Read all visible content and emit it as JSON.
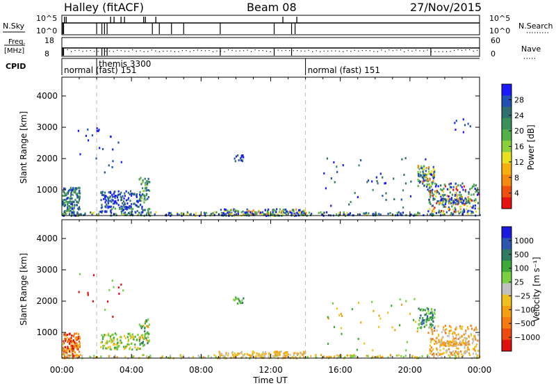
{
  "header": {
    "station": "Halley (fitACF)",
    "beam": "Beam 08",
    "date": "27/Nov/2015"
  },
  "side_labels": {
    "nsky": "N.Sky",
    "nsearch": "N.Search",
    "freq_line1": "Freq.",
    "freq_line2": "[MHz]",
    "nave": "Nave",
    "cpid": "CPID",
    "nsky_top": "10^5",
    "nsky_bottom": "10^0",
    "nsearch_top": "10^5",
    "nsearch_bottom": "10^0",
    "freq_top": "18",
    "freq_bottom": "8",
    "nave_top": "60",
    "nave_bottom": "0"
  },
  "cpid_segments": [
    {
      "start_hour": 0.0,
      "label": "normal (fast) 151"
    },
    {
      "start_hour": 2.0,
      "label": "themis 3300"
    },
    {
      "start_hour": 14.0,
      "label": "normal (fast) 151"
    }
  ],
  "chart_data": [
    {
      "type": "heatmap",
      "name": "power",
      "xlabel": "",
      "ylabel": "Slant Range [km]",
      "xlim": [
        0,
        24
      ],
      "ylim": [
        180,
        4600
      ],
      "yticks": [
        1000,
        2000,
        3000,
        4000
      ],
      "colorbar_label": "Power [dB]",
      "colorbar_ticks": [
        "4",
        "8",
        "12",
        "16",
        "20",
        "24",
        "28"
      ],
      "colorbar_colors": [
        "#1a1aff",
        "#2251b5",
        "#2f6f6f",
        "#3a8f5a",
        "#55b04a",
        "#8ad03a",
        "#e8e020",
        "#f5b010",
        "#f58a10",
        "#ee5010",
        "#e81010"
      ],
      "grid": false,
      "clusters": [
        {
          "t0": 0.0,
          "t1": 1.0,
          "r0": 200,
          "r1": 1100,
          "n": 160,
          "c": [
            0,
            1,
            2,
            3,
            4
          ]
        },
        {
          "t0": 0.0,
          "t1": 24.0,
          "r0": 200,
          "r1": 320,
          "n": 260,
          "c": [
            0,
            1,
            2,
            3,
            4,
            6
          ]
        },
        {
          "t0": 2.2,
          "t1": 4.5,
          "r0": 480,
          "r1": 1000,
          "n": 120,
          "c": [
            0,
            1,
            2
          ]
        },
        {
          "t0": 4.4,
          "t1": 5.0,
          "r0": 600,
          "r1": 1450,
          "n": 50,
          "c": [
            1,
            2,
            3,
            4,
            5
          ]
        },
        {
          "t0": 2.1,
          "t1": 5.0,
          "r0": 300,
          "r1": 500,
          "n": 60,
          "c": [
            0,
            1,
            2,
            4
          ]
        },
        {
          "t0": 9.0,
          "t1": 14.0,
          "r0": 200,
          "r1": 420,
          "n": 150,
          "c": [
            0,
            1,
            3,
            4,
            6,
            8
          ]
        },
        {
          "t0": 20.4,
          "t1": 21.4,
          "r0": 1150,
          "r1": 1800,
          "n": 90,
          "c": [
            0,
            1,
            3,
            4,
            5,
            6,
            8
          ]
        },
        {
          "t0": 21.0,
          "t1": 23.9,
          "r0": 300,
          "r1": 1250,
          "n": 210,
          "c": [
            0,
            1,
            2,
            3,
            4,
            6,
            8,
            10
          ]
        },
        {
          "t0": 15.0,
          "t1": 21.0,
          "r0": 400,
          "r1": 2100,
          "n": 45,
          "c": [
            0,
            1,
            2,
            3
          ]
        },
        {
          "t0": 0.5,
          "t1": 3.5,
          "r0": 1500,
          "r1": 3000,
          "n": 22,
          "c": [
            0,
            1
          ]
        },
        {
          "t0": 9.8,
          "t1": 10.4,
          "r0": 1950,
          "r1": 2150,
          "n": 14,
          "c": [
            0,
            1,
            2
          ]
        },
        {
          "t0": 22.5,
          "t1": 23.6,
          "r0": 2800,
          "r1": 3300,
          "n": 8,
          "c": [
            0,
            1
          ]
        },
        {
          "t0": 21.6,
          "t1": 23.4,
          "r0": 600,
          "r1": 750,
          "n": 70,
          "c": [
            0,
            1,
            2,
            3,
            5,
            7
          ]
        }
      ]
    },
    {
      "type": "heatmap",
      "name": "velocity",
      "xlabel": "Time UT",
      "ylabel": "Slant Range [km]",
      "xlim": [
        0,
        24
      ],
      "ylim": [
        180,
        4600
      ],
      "xticks": [
        "00:00",
        "04:00",
        "08:00",
        "12:00",
        "16:00",
        "20:00",
        "00:00"
      ],
      "yticks": [
        1000,
        2000,
        3000,
        4000
      ],
      "colorbar_label": "Velocity [m s⁻¹]",
      "colorbar_ticks": [
        "1000",
        "500",
        "100",
        "25",
        "−25",
        "−100",
        "−500",
        "−1000"
      ],
      "colorbar_colors": [
        "#1a1ae0",
        "#2a56b0",
        "#2f7a60",
        "#3ea83a",
        "#7ad040",
        "#c0c0c0",
        "#f0c020",
        "#f5a010",
        "#f57a10",
        "#ee4a10",
        "#e01010"
      ],
      "grid": false,
      "clusters": [
        {
          "t0": 0.0,
          "t1": 1.0,
          "r0": 200,
          "r1": 1000,
          "n": 150,
          "c": [
            6,
            7,
            8,
            9,
            10
          ]
        },
        {
          "t0": 0.0,
          "t1": 24.0,
          "r0": 200,
          "r1": 320,
          "n": 200,
          "c": [
            4,
            5,
            6,
            7
          ]
        },
        {
          "t0": 2.2,
          "t1": 4.5,
          "r0": 480,
          "r1": 1000,
          "n": 110,
          "c": [
            3,
            4,
            6
          ]
        },
        {
          "t0": 4.4,
          "t1": 5.0,
          "r0": 600,
          "r1": 1450,
          "n": 50,
          "c": [
            2,
            3,
            4,
            7
          ]
        },
        {
          "t0": 9.0,
          "t1": 14.0,
          "r0": 200,
          "r1": 420,
          "n": 140,
          "c": [
            5,
            6,
            7
          ]
        },
        {
          "t0": 20.4,
          "t1": 21.4,
          "r0": 1150,
          "r1": 1800,
          "n": 80,
          "c": [
            1,
            2,
            3,
            4
          ]
        },
        {
          "t0": 21.0,
          "t1": 23.9,
          "r0": 300,
          "r1": 1250,
          "n": 200,
          "c": [
            5,
            6,
            7,
            8
          ]
        },
        {
          "t0": 15.0,
          "t1": 21.0,
          "r0": 400,
          "r1": 2100,
          "n": 40,
          "c": [
            3,
            4,
            6,
            7
          ]
        },
        {
          "t0": 0.5,
          "t1": 3.5,
          "r0": 1500,
          "r1": 3000,
          "n": 16,
          "c": [
            4,
            10
          ]
        },
        {
          "t0": 9.8,
          "t1": 10.4,
          "r0": 1950,
          "r1": 2150,
          "n": 14,
          "c": [
            2,
            3,
            4
          ]
        },
        {
          "t0": 21.6,
          "t1": 23.4,
          "r0": 600,
          "r1": 750,
          "n": 70,
          "c": [
            5,
            6,
            7,
            8
          ]
        }
      ]
    }
  ]
}
